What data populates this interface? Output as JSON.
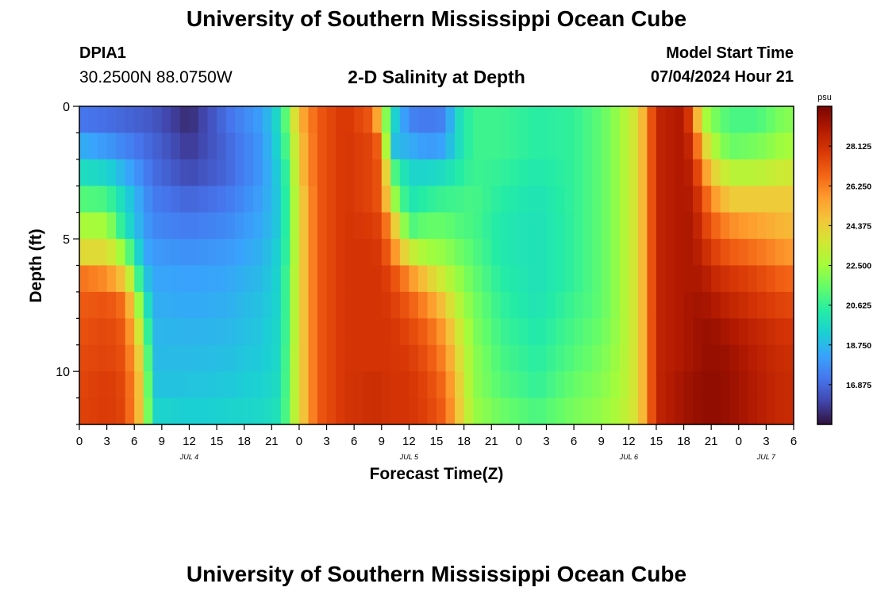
{
  "header": {
    "title": "University of Southern Mississippi Ocean Cube",
    "station": "DPIA1",
    "coordinates": "30.2500N  88.0750W",
    "subtitle": "2-D Salinity at Depth",
    "model_start_label": "Model Start Time",
    "model_start_value": "07/04/2024 Hour 21"
  },
  "footer": {
    "title": "University of Southern Mississippi Ocean Cube"
  },
  "chart_data": {
    "type": "heatmap",
    "xlabel": "Forecast Time(Z)",
    "ylabel": "Depth (ft)",
    "x_start": 0,
    "x_end": 78,
    "xticks": [
      "0",
      "3",
      "6",
      "9",
      "12",
      "15",
      "18",
      "21",
      "0",
      "3",
      "6",
      "9",
      "12",
      "15",
      "18",
      "21",
      "0",
      "3",
      "6",
      "9",
      "12",
      "15",
      "18",
      "21",
      "0",
      "3",
      "6"
    ],
    "day_labels": [
      {
        "label": "JUL 4",
        "hour": 12
      },
      {
        "label": "JUL 5",
        "hour": 36
      },
      {
        "label": "JUL 6",
        "hour": 60
      },
      {
        "label": "JUL 7",
        "hour": 75
      }
    ],
    "y_range": [
      0,
      12
    ],
    "yticks": [
      "0",
      "5",
      "10"
    ],
    "colorbar": {
      "unit": "psu",
      "min": 15,
      "max": 30,
      "ticks": [
        "16.875",
        "18.750",
        "20.625",
        "22.500",
        "24.375",
        "26.250",
        "28.125"
      ],
      "colors": [
        "#30123b",
        "#4145ab",
        "#4675ed",
        "#39a2fc",
        "#1bcfd4",
        "#24eca6",
        "#61fc6c",
        "#a4fc3b",
        "#d1e834",
        "#f3c63a",
        "#fe9b2d",
        "#f36315",
        "#d93806",
        "#b11901",
        "#7a0402"
      ]
    },
    "depth_levels": [
      0.5,
      1.5,
      2.5,
      3.5,
      4.5,
      5.5,
      6.5,
      7.5,
      8.5,
      9.5,
      10.5,
      11.5
    ],
    "salinity_profile": [
      {
        "hour": 0,
        "values": [
          17.2,
          18.5,
          19.8,
          21.2,
          22.6,
          24.0,
          26.5,
          27.0,
          27.2,
          27.4,
          27.5,
          27.6
        ]
      },
      {
        "hour": 3,
        "values": [
          17.0,
          18.0,
          19.5,
          21.0,
          22.5,
          24.0,
          26.0,
          27.2,
          27.5,
          27.6,
          27.8,
          27.8
        ]
      },
      {
        "hour": 5,
        "values": [
          16.8,
          17.5,
          18.5,
          19.5,
          20.0,
          22.0,
          24.5,
          26.5,
          27.0,
          27.2,
          27.4,
          27.5
        ]
      },
      {
        "hour": 7,
        "values": [
          16.6,
          17.0,
          17.5,
          18.0,
          18.2,
          18.5,
          19.5,
          21.0,
          22.5,
          23.5,
          24.0,
          24.0
        ]
      },
      {
        "hour": 8,
        "values": [
          16.5,
          16.8,
          17.0,
          17.3,
          17.6,
          18.0,
          18.3,
          18.5,
          18.7,
          18.8,
          19.0,
          19.5
        ]
      },
      {
        "hour": 12,
        "values": [
          15.5,
          15.8,
          16.2,
          16.8,
          17.3,
          17.8,
          18.2,
          18.4,
          18.6,
          18.8,
          19.0,
          19.3
        ]
      },
      {
        "hour": 16,
        "values": [
          17.0,
          16.8,
          16.8,
          17.2,
          17.6,
          18.0,
          18.3,
          18.5,
          18.7,
          18.9,
          19.1,
          19.4
        ]
      },
      {
        "hour": 20,
        "values": [
          18.2,
          18.0,
          18.0,
          18.2,
          18.4,
          18.6,
          18.8,
          19.0,
          19.1,
          19.2,
          19.4,
          19.6
        ]
      },
      {
        "hour": 22,
        "values": [
          20.0,
          19.8,
          19.5,
          19.3,
          19.3,
          19.5,
          19.6,
          19.6,
          19.7,
          19.7,
          19.8,
          20.0
        ]
      },
      {
        "hour": 23,
        "values": [
          22.5,
          22.0,
          21.5,
          21.5,
          21.5,
          21.5,
          21.8,
          21.8,
          21.8,
          22.0,
          22.0,
          22.0
        ]
      },
      {
        "hour": 24,
        "values": [
          25.0,
          24.5,
          24.5,
          24.0,
          24.0,
          24.0,
          24.0,
          24.0,
          24.0,
          24.0,
          24.0,
          24.0
        ]
      },
      {
        "hour": 26,
        "values": [
          27.0,
          27.0,
          27.0,
          27.0,
          27.0,
          27.0,
          27.0,
          27.0,
          27.0,
          27.0,
          27.0,
          27.0
        ]
      },
      {
        "hour": 29,
        "values": [
          28.0,
          28.0,
          28.0,
          28.0,
          28.0,
          28.0,
          28.0,
          28.0,
          28.0,
          28.0,
          28.0,
          28.0
        ]
      },
      {
        "hour": 32,
        "values": [
          27.0,
          27.5,
          27.5,
          27.5,
          27.8,
          28.0,
          28.0,
          28.0,
          28.0,
          28.0,
          28.2,
          28.2
        ]
      },
      {
        "hour": 33,
        "values": [
          24.0,
          26.5,
          27.0,
          27.0,
          27.5,
          27.8,
          28.0,
          28.0,
          28.0,
          28.0,
          28.2,
          28.2
        ]
      },
      {
        "hour": 34,
        "values": [
          20.0,
          19.0,
          21.5,
          23.0,
          25.5,
          26.5,
          27.5,
          27.8,
          28.0,
          28.0,
          28.0,
          28.0
        ]
      },
      {
        "hour": 36,
        "values": [
          17.5,
          18.5,
          19.5,
          20.0,
          21.0,
          23.5,
          26.0,
          27.0,
          27.5,
          27.8,
          28.0,
          28.0
        ]
      },
      {
        "hour": 38,
        "values": [
          17.2,
          18.0,
          19.5,
          20.5,
          21.5,
          22.5,
          24.5,
          26.0,
          26.8,
          27.2,
          27.5,
          27.6
        ]
      },
      {
        "hour": 40,
        "values": [
          17.5,
          18.3,
          19.8,
          20.8,
          21.5,
          22.2,
          23.2,
          24.5,
          25.5,
          26.0,
          26.5,
          26.8
        ]
      },
      {
        "hour": 41,
        "values": [
          19.5,
          19.5,
          20.2,
          20.8,
          21.2,
          21.8,
          22.5,
          23.2,
          24.0,
          24.5,
          25.0,
          25.2
        ]
      },
      {
        "hour": 43,
        "values": [
          20.8,
          20.8,
          20.8,
          21.0,
          21.0,
          21.2,
          21.5,
          21.8,
          22.0,
          22.2,
          22.2,
          22.4
        ]
      },
      {
        "hour": 46,
        "values": [
          20.8,
          20.8,
          20.6,
          20.4,
          20.2,
          20.2,
          20.4,
          20.6,
          20.8,
          21.0,
          21.2,
          21.6
        ]
      },
      {
        "hour": 50,
        "values": [
          20.4,
          20.4,
          20.2,
          20.0,
          19.9,
          19.9,
          19.9,
          20.0,
          20.2,
          20.4,
          20.6,
          21.0
        ]
      },
      {
        "hour": 54,
        "values": [
          20.6,
          20.6,
          20.6,
          20.6,
          20.6,
          20.6,
          20.6,
          20.8,
          21.0,
          21.2,
          21.5,
          21.8
        ]
      },
      {
        "hour": 57,
        "values": [
          21.4,
          21.4,
          21.4,
          21.4,
          21.4,
          21.4,
          21.4,
          21.4,
          21.6,
          21.8,
          22.0,
          22.2
        ]
      },
      {
        "hour": 59,
        "values": [
          22.4,
          22.4,
          22.4,
          22.4,
          22.4,
          22.4,
          22.4,
          22.4,
          22.4,
          22.5,
          22.6,
          22.8
        ]
      },
      {
        "hour": 61,
        "values": [
          24.0,
          24.0,
          24.0,
          24.0,
          24.0,
          24.0,
          24.0,
          24.0,
          24.0,
          24.0,
          24.0,
          24.0
        ]
      },
      {
        "hour": 62,
        "values": [
          26.0,
          26.0,
          26.0,
          26.0,
          26.0,
          26.0,
          26.0,
          26.0,
          26.0,
          26.0,
          26.0,
          26.0
        ]
      },
      {
        "hour": 63,
        "values": [
          28.5,
          28.5,
          28.5,
          28.5,
          28.5,
          28.5,
          28.5,
          28.5,
          28.5,
          28.5,
          28.5,
          28.5
        ]
      },
      {
        "hour": 66,
        "values": [
          29.0,
          29.0,
          29.0,
          29.0,
          29.0,
          29.0,
          29.0,
          29.0,
          29.0,
          29.0,
          29.2,
          29.2
        ]
      },
      {
        "hour": 67,
        "values": [
          27.0,
          28.0,
          28.5,
          28.8,
          29.0,
          29.0,
          29.0,
          29.2,
          29.2,
          29.2,
          29.4,
          29.4
        ]
      },
      {
        "hour": 68,
        "values": [
          23.0,
          25.0,
          26.5,
          27.5,
          28.0,
          28.5,
          29.0,
          29.2,
          29.4,
          29.4,
          29.5,
          29.5
        ]
      },
      {
        "hour": 69,
        "values": [
          22.0,
          23.0,
          24.5,
          26.0,
          27.0,
          27.8,
          28.5,
          29.0,
          29.4,
          29.5,
          29.6,
          29.6
        ]
      },
      {
        "hour": 71,
        "values": [
          21.0,
          21.5,
          23.0,
          24.5,
          26.0,
          27.0,
          28.0,
          28.5,
          29.0,
          29.3,
          29.4,
          29.4
        ]
      },
      {
        "hour": 74,
        "values": [
          21.0,
          21.8,
          23.0,
          24.5,
          25.5,
          26.5,
          27.5,
          28.0,
          28.5,
          28.7,
          28.8,
          28.8
        ]
      },
      {
        "hour": 77,
        "values": [
          22.0,
          22.5,
          23.5,
          24.5,
          25.0,
          25.8,
          26.8,
          27.5,
          28.0,
          28.2,
          28.3,
          28.3
        ]
      }
    ]
  }
}
